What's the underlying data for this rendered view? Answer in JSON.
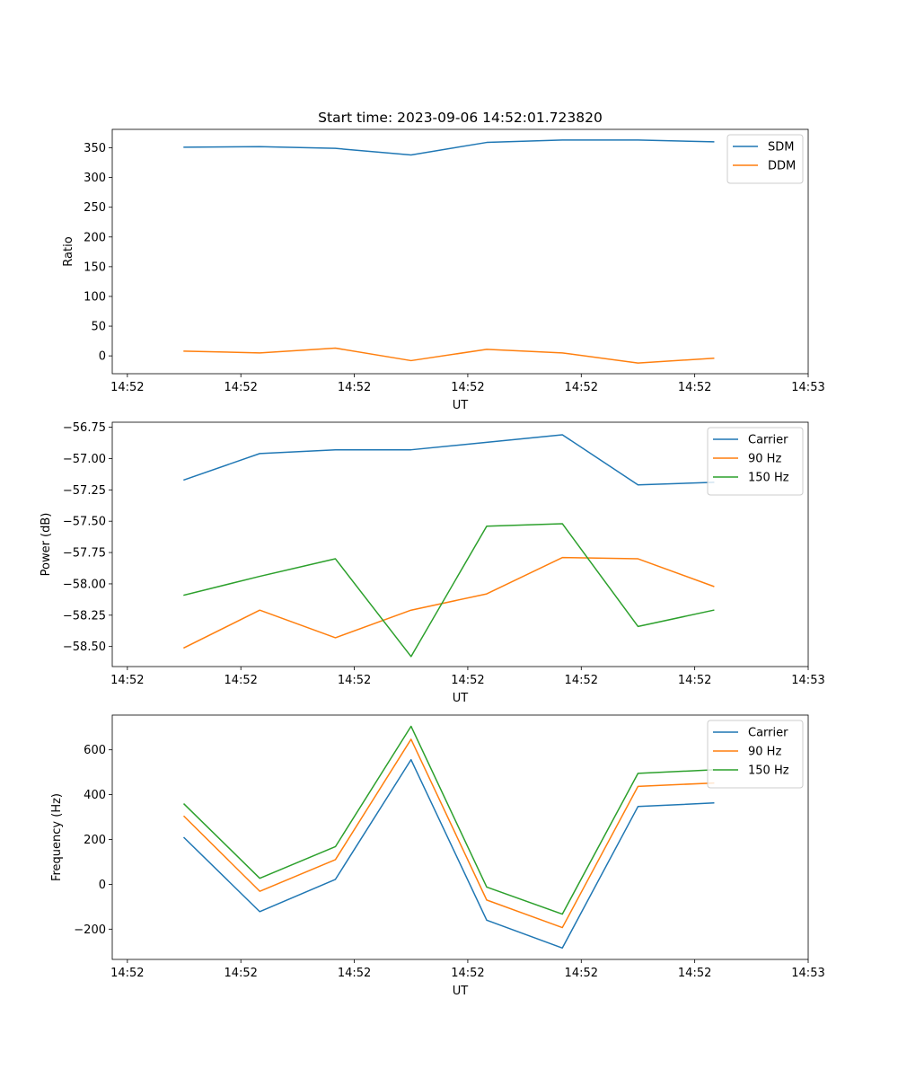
{
  "figure_title": "Start time: 2023-09-06 14:52:01.723820",
  "chart_data": [
    {
      "type": "line",
      "title": "Start time: 2023-09-06 14:52:01.723820",
      "xlabel": "UT",
      "ylabel": "Ratio",
      "xlim": [
        -0.2,
        9.0
      ],
      "ylim": [
        -30,
        381
      ],
      "x": [
        0.75,
        1.75,
        2.75,
        3.75,
        4.75,
        5.75,
        6.75,
        7.75
      ],
      "xticks": [
        0,
        1.5,
        3,
        4.5,
        6,
        7.5,
        9
      ],
      "xtick_labels": [
        "14:52",
        "14:52",
        "14:52",
        "14:52",
        "14:52",
        "14:52",
        "14:53"
      ],
      "yticks": [
        0,
        50,
        100,
        150,
        200,
        250,
        300,
        350
      ],
      "ytick_labels": [
        "0",
        "50",
        "100",
        "150",
        "200",
        "250",
        "300",
        "350"
      ],
      "legend_position": "top-right",
      "series": [
        {
          "name": "SDM",
          "color": "#1f77b4",
          "values": [
            351,
            352,
            349,
            338,
            359,
            363,
            363,
            360
          ]
        },
        {
          "name": "DDM",
          "color": "#ff7f0e",
          "values": [
            8,
            5,
            13,
            -8,
            11,
            5,
            -12,
            -4
          ]
        }
      ]
    },
    {
      "type": "line",
      "title": "",
      "xlabel": "UT",
      "ylabel": "Power (dB)",
      "xlim": [
        -0.2,
        9.0
      ],
      "ylim": [
        -58.66,
        -56.71
      ],
      "x": [
        0.75,
        1.75,
        2.75,
        3.75,
        4.75,
        5.75,
        6.75,
        7.75
      ],
      "xticks": [
        0,
        1.5,
        3,
        4.5,
        6,
        7.5,
        9
      ],
      "xtick_labels": [
        "14:52",
        "14:52",
        "14:52",
        "14:52",
        "14:52",
        "14:52",
        "14:53"
      ],
      "yticks": [
        -58.5,
        -58.25,
        -58.0,
        -57.75,
        -57.5,
        -57.25,
        -57.0,
        -56.75
      ],
      "ytick_labels": [
        "−58.50",
        "−58.25",
        "−58.00",
        "−57.75",
        "−57.50",
        "−57.25",
        "−57.00",
        "−56.75"
      ],
      "legend_position": "top-right",
      "series": [
        {
          "name": "Carrier",
          "color": "#1f77b4",
          "values": [
            -57.17,
            -56.96,
            -56.93,
            -56.93,
            -56.87,
            -56.81,
            -57.21,
            -57.19
          ]
        },
        {
          "name": "90 Hz",
          "color": "#ff7f0e",
          "values": [
            -58.51,
            -58.21,
            -58.43,
            -58.21,
            -58.08,
            -57.79,
            -57.8,
            -58.02
          ]
        },
        {
          "name": "150 Hz",
          "color": "#2ca02c",
          "values": [
            -58.09,
            -57.94,
            -57.8,
            -58.58,
            -57.54,
            -57.52,
            -58.34,
            -58.21
          ]
        }
      ]
    },
    {
      "type": "line",
      "title": "",
      "xlabel": "UT",
      "ylabel": "Frequency (Hz)",
      "xlim": [
        -0.2,
        9.0
      ],
      "ylim": [
        -335,
        755
      ],
      "x": [
        0.75,
        1.75,
        2.75,
        3.75,
        4.75,
        5.75,
        6.75,
        7.75
      ],
      "xticks": [
        0,
        1.5,
        3,
        4.5,
        6,
        7.5,
        9
      ],
      "xtick_labels": [
        "14:52",
        "14:52",
        "14:52",
        "14:52",
        "14:52",
        "14:52",
        "14:53"
      ],
      "yticks": [
        -200,
        0,
        200,
        400,
        600
      ],
      "ytick_labels": [
        "−200",
        "0",
        "200",
        "400",
        "600"
      ],
      "legend_position": "top-right",
      "series": [
        {
          "name": "Carrier",
          "color": "#1f77b4",
          "values": [
            208,
            -122,
            22,
            556,
            -160,
            -284,
            347,
            363
          ]
        },
        {
          "name": "90 Hz",
          "color": "#ff7f0e",
          "values": [
            303,
            -31,
            110,
            647,
            -70,
            -193,
            437,
            452
          ]
        },
        {
          "name": "150 Hz",
          "color": "#2ca02c",
          "values": [
            358,
            27,
            168,
            705,
            -12,
            -133,
            495,
            511
          ]
        }
      ]
    }
  ]
}
